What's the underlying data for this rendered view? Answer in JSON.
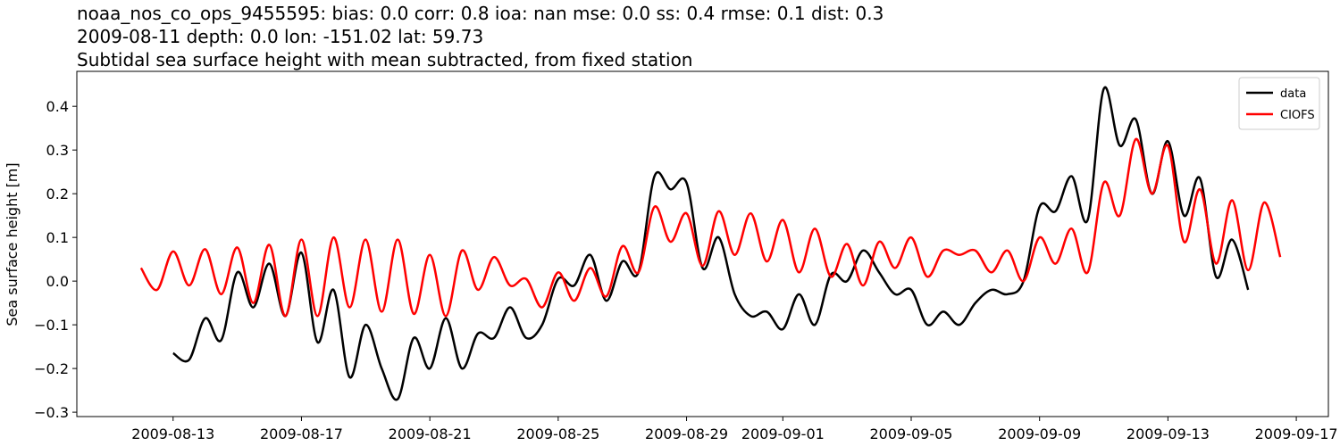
{
  "chart_data": {
    "type": "line",
    "title": [
      "noaa_nos_co_ops_9455595: bias: 0.0  corr: 0.8  ioa: nan  mse: 0.0  ss: 0.4  rmse: 0.1  dist: 0.3",
      "2009-08-11 depth: 0.0 lon: -151.02 lat: 59.73",
      "Subtidal sea surface height with mean subtracted, from fixed station"
    ],
    "ylabel": "Sea surface height [m]",
    "x": [
      "2009-08-12 00:00",
      "2009-08-12 12:00",
      "2009-08-13 00:00",
      "2009-08-13 12:00",
      "2009-08-14 00:00",
      "2009-08-14 12:00",
      "2009-08-15 00:00",
      "2009-08-15 12:00",
      "2009-08-16 00:00",
      "2009-08-16 12:00",
      "2009-08-17 00:00",
      "2009-08-17 12:00",
      "2009-08-18 00:00",
      "2009-08-18 12:00",
      "2009-08-19 00:00",
      "2009-08-19 12:00",
      "2009-08-20 00:00",
      "2009-08-20 12:00",
      "2009-08-21 00:00",
      "2009-08-21 12:00",
      "2009-08-22 00:00",
      "2009-08-22 12:00",
      "2009-08-23 00:00",
      "2009-08-23 12:00",
      "2009-08-24 00:00",
      "2009-08-24 12:00",
      "2009-08-25 00:00",
      "2009-08-25 12:00",
      "2009-08-26 00:00",
      "2009-08-26 12:00",
      "2009-08-27 00:00",
      "2009-08-27 12:00",
      "2009-08-28 00:00",
      "2009-08-28 12:00",
      "2009-08-29 00:00",
      "2009-08-29 12:00",
      "2009-08-30 00:00",
      "2009-08-30 12:00",
      "2009-08-31 00:00",
      "2009-08-31 12:00",
      "2009-09-01 00:00",
      "2009-09-01 12:00",
      "2009-09-02 00:00",
      "2009-09-02 12:00",
      "2009-09-03 00:00",
      "2009-09-03 12:00",
      "2009-09-04 00:00",
      "2009-09-04 12:00",
      "2009-09-05 00:00",
      "2009-09-05 12:00",
      "2009-09-06 00:00",
      "2009-09-06 12:00",
      "2009-09-07 00:00",
      "2009-09-07 12:00",
      "2009-09-08 00:00",
      "2009-09-08 12:00",
      "2009-09-09 00:00",
      "2009-09-09 12:00",
      "2009-09-10 00:00",
      "2009-09-10 12:00",
      "2009-09-11 00:00",
      "2009-09-11 12:00",
      "2009-09-12 00:00",
      "2009-09-12 12:00",
      "2009-09-13 00:00",
      "2009-09-13 12:00",
      "2009-09-14 00:00",
      "2009-09-14 12:00",
      "2009-09-15 00:00",
      "2009-09-15 12:00",
      "2009-09-16 00:00",
      "2009-09-16 12:00"
    ],
    "series": [
      {
        "name": "data",
        "color": "#000000",
        "values": [
          null,
          null,
          -0.165,
          -0.18,
          -0.085,
          -0.135,
          0.02,
          -0.06,
          0.04,
          -0.08,
          0.065,
          -0.14,
          -0.02,
          -0.22,
          -0.1,
          -0.2,
          -0.27,
          -0.13,
          -0.2,
          -0.085,
          -0.2,
          -0.12,
          -0.13,
          -0.06,
          -0.13,
          -0.1,
          0.005,
          -0.01,
          0.06,
          -0.045,
          0.045,
          0.02,
          0.24,
          0.21,
          0.225,
          0.03,
          0.1,
          -0.03,
          -0.08,
          -0.07,
          -0.11,
          -0.03,
          -0.1,
          0.015,
          0.0,
          0.07,
          0.02,
          -0.03,
          -0.02,
          -0.1,
          -0.07,
          -0.1,
          -0.05,
          -0.02,
          -0.03,
          0.0,
          0.17,
          0.16,
          0.24,
          0.14,
          0.44,
          0.31,
          0.37,
          0.2,
          0.32,
          0.15,
          0.235,
          0.01,
          0.095,
          -0.02,
          null,
          null
        ]
      },
      {
        "name": "CIOFS",
        "color": "#ff0000",
        "values": [
          0.03,
          -0.02,
          0.068,
          -0.01,
          0.073,
          -0.03,
          0.077,
          -0.05,
          0.083,
          -0.08,
          0.095,
          -0.08,
          0.1,
          -0.06,
          0.095,
          -0.07,
          0.095,
          -0.075,
          0.06,
          -0.08,
          0.07,
          -0.02,
          0.055,
          -0.01,
          0.005,
          -0.06,
          0.02,
          -0.045,
          0.03,
          -0.035,
          0.08,
          0.02,
          0.17,
          0.09,
          0.155,
          0.035,
          0.16,
          0.06,
          0.155,
          0.045,
          0.14,
          0.02,
          0.12,
          0.01,
          0.085,
          -0.01,
          0.09,
          0.03,
          0.1,
          0.01,
          0.07,
          0.06,
          0.07,
          0.02,
          0.07,
          0.0,
          0.1,
          0.04,
          0.12,
          0.02,
          0.225,
          0.15,
          0.325,
          0.2,
          0.31,
          0.09,
          0.21,
          0.04,
          0.185,
          0.025,
          0.18,
          0.055
        ]
      }
    ],
    "xlim": [
      "2009-08-10",
      "2009-09-18"
    ],
    "xticks": [
      "2009-08-13",
      "2009-08-17",
      "2009-08-21",
      "2009-08-25",
      "2009-08-29",
      "2009-09-01",
      "2009-09-05",
      "2009-09-09",
      "2009-09-13",
      "2009-09-17"
    ],
    "ylim": [
      -0.31,
      0.48
    ],
    "yticks": [
      {
        "value": -0.3,
        "label": "−0.3"
      },
      {
        "value": -0.2,
        "label": "−0.2"
      },
      {
        "value": -0.1,
        "label": "−0.1"
      },
      {
        "value": 0,
        "label": "0.0"
      },
      0.1,
      0.2,
      0.3,
      0.4
    ],
    "legend": "upper right",
    "grid": false
  }
}
